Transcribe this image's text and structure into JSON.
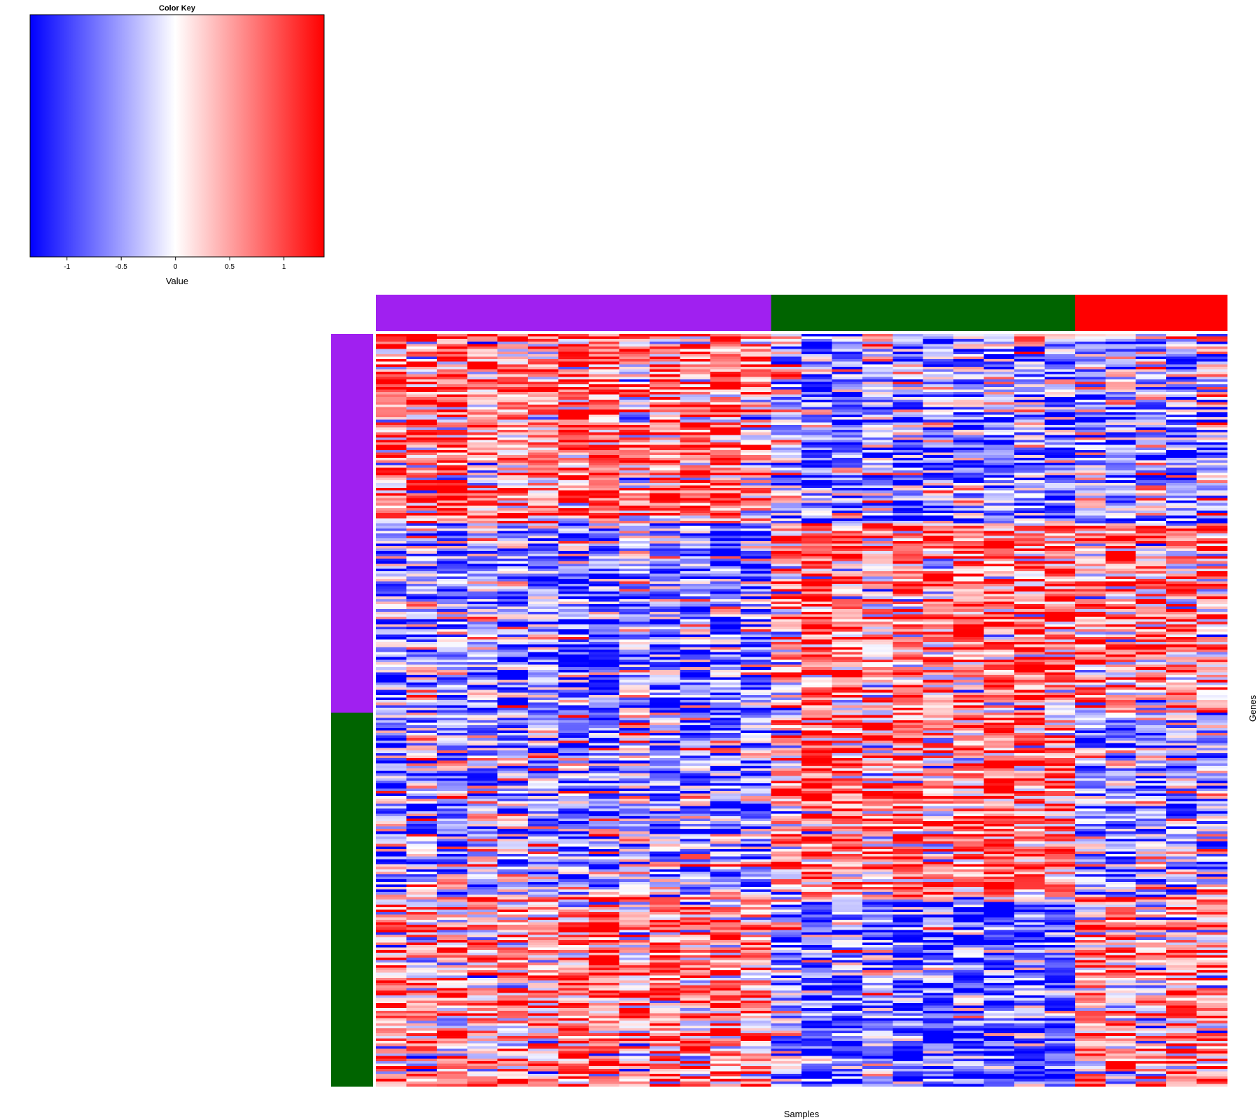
{
  "chart_data": {
    "type": "heatmap",
    "title": "",
    "xlabel": "Samples",
    "ylabel": "Genes",
    "color_key": {
      "title": "Color Key",
      "xlabel": "Value",
      "range": [
        -1.34,
        1.37
      ],
      "ticks": [
        -1,
        -0.5,
        0,
        0.5,
        1
      ],
      "tick_labels": [
        "-1",
        "-0.5",
        "0",
        "0.5",
        "1"
      ],
      "colors": [
        "#0000ff",
        "#ffffff",
        "#ff0000"
      ]
    },
    "column_groups": [
      {
        "color": "#a020f0",
        "n_columns": 13
      },
      {
        "color": "#006400",
        "n_columns": 10
      },
      {
        "color": "#ff0000",
        "n_columns": 5
      }
    ],
    "row_groups": [
      {
        "color": "#a020f0",
        "row_blocks": [
          0,
          1
        ]
      },
      {
        "color": "#006400",
        "row_blocks": [
          2,
          3
        ]
      }
    ],
    "row_blocks": [
      {
        "n_rows": 75,
        "mean_by_column_group": [
          0.75,
          -0.6,
          -0.5
        ]
      },
      {
        "n_rows": 75,
        "mean_by_column_group": [
          -0.65,
          0.7,
          0.6
        ]
      },
      {
        "n_rows": 73,
        "mean_by_column_group": [
          -0.55,
          0.75,
          -0.5
        ]
      },
      {
        "n_rows": 75,
        "mean_by_column_group": [
          0.65,
          -0.8,
          0.6
        ]
      }
    ],
    "column_strength": [
      1.0,
      0.7,
      0.9,
      0.6,
      0.8,
      0.7,
      1.2,
      1.2,
      0.6,
      1.0,
      1.0,
      1.0,
      0.7,
      0.5,
      1.2,
      1.0,
      0.5,
      1.1,
      0.8,
      1.0,
      1.1,
      0.9,
      1.1,
      0.9,
      1.0,
      0.8,
      1.0,
      0.7
    ],
    "noise": 0.75
  }
}
